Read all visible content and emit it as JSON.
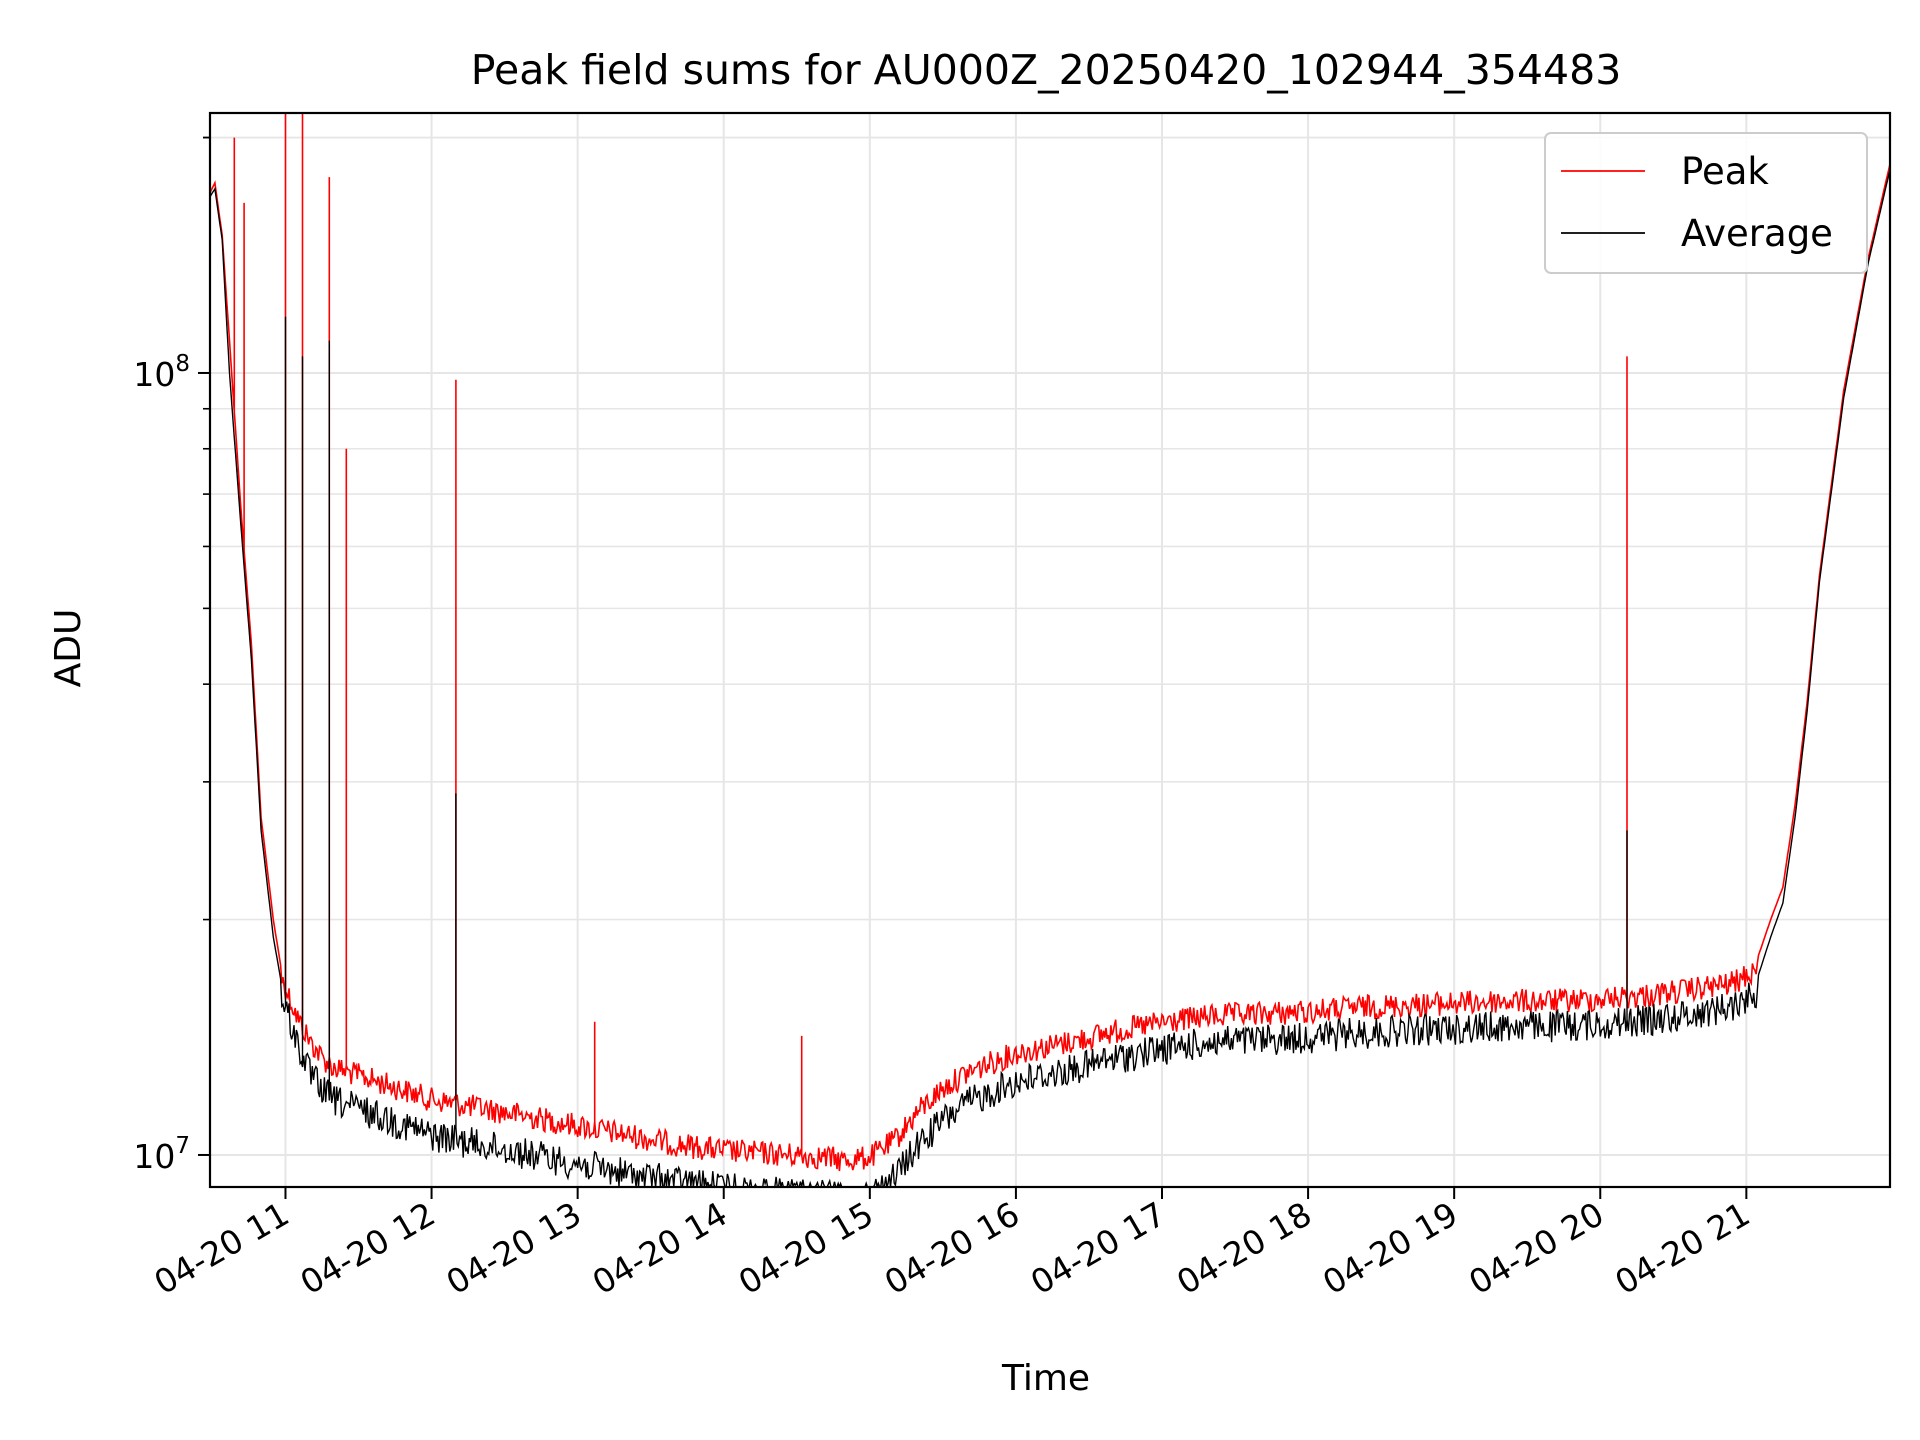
{
  "chart_data": {
    "type": "line",
    "title": "Peak field sums for AU000Z_20250420_102944_354483",
    "xlabel": "Time",
    "ylabel": "ADU",
    "y_scale": "log",
    "ylim": [
      9100000,
      215000000
    ],
    "xlim": [
      "2025-04-20 10:29",
      "2025-04-20 21:59"
    ],
    "x_ticks": [
      "04-20 11",
      "04-20 12",
      "04-20 13",
      "04-20 14",
      "04-20 15",
      "04-20 16",
      "04-20 17",
      "04-20 18",
      "04-20 19",
      "04-20 20",
      "04-20 21"
    ],
    "y_ticks": [
      "10^7",
      "10^8"
    ],
    "grid": true,
    "legend_position": "top-right",
    "series": [
      {
        "name": "Peak",
        "color": "#ff0000",
        "x": [
          "10:29",
          "10:31",
          "10:34",
          "10:37",
          "10:42",
          "10:46",
          "10:50",
          "10:55",
          "10:58",
          "11:00",
          "11:05",
          "11:10",
          "11:15",
          "11:20",
          "11:30",
          "11:40",
          "11:50",
          "12:00",
          "12:20",
          "12:40",
          "13:00",
          "13:20",
          "13:40",
          "14:00",
          "14:20",
          "14:40",
          "14:50",
          "15:00",
          "15:10",
          "15:20",
          "15:30",
          "15:40",
          "15:50",
          "16:00",
          "16:20",
          "16:40",
          "17:00",
          "17:20",
          "17:40",
          "18:00",
          "18:20",
          "18:40",
          "19:00",
          "19:20",
          "19:40",
          "20:00",
          "20:20",
          "20:40",
          "20:55",
          "21:05",
          "21:10",
          "21:15",
          "21:20",
          "21:25",
          "21:30",
          "21:40",
          "21:50",
          "21:59"
        ],
        "values": [
          170000000,
          175000000,
          150000000,
          110000000,
          65000000,
          45000000,
          27000000,
          20000000,
          17500000,
          17000000,
          15500000,
          14500000,
          13800000,
          13400000,
          13100000,
          12800000,
          12500000,
          12200000,
          11900000,
          11600000,
          11300000,
          11000000,
          10700000,
          10500000,
          10400000,
          10300000,
          10200000,
          10300000,
          10800000,
          11800000,
          12600000,
          13200000,
          13600000,
          14000000,
          14400000,
          14900000,
          15300000,
          15600000,
          15700000,
          15800000,
          16000000,
          16100000,
          16200000,
          16300000,
          16300000,
          16400000,
          16600000,
          16900000,
          17200000,
          18000000,
          20000000,
          22000000,
          28000000,
          38000000,
          55000000,
          95000000,
          140000000,
          185000000
        ],
        "spikes": [
          {
            "x": "10:39",
            "value": 200000000
          },
          {
            "x": "10:43",
            "value": 165000000
          },
          {
            "x": "11:00",
            "value": 220000000
          },
          {
            "x": "11:07",
            "value": 240000000
          },
          {
            "x": "11:18",
            "value": 178000000
          },
          {
            "x": "11:25",
            "value": 80000000
          },
          {
            "x": "12:10",
            "value": 98000000
          },
          {
            "x": "13:07",
            "value": 14800000
          },
          {
            "x": "14:32",
            "value": 14200000
          },
          {
            "x": "20:11",
            "value": 105000000
          }
        ]
      },
      {
        "name": "Average",
        "color": "#000000",
        "x": [
          "10:29",
          "10:31",
          "10:34",
          "10:37",
          "10:42",
          "10:46",
          "10:50",
          "10:55",
          "10:58",
          "11:00",
          "11:05",
          "11:10",
          "11:15",
          "11:20",
          "11:30",
          "11:40",
          "11:50",
          "12:00",
          "12:20",
          "12:40",
          "13:00",
          "13:20",
          "13:40",
          "14:00",
          "14:20",
          "14:40",
          "14:50",
          "15:00",
          "15:10",
          "15:20",
          "15:30",
          "15:40",
          "15:50",
          "16:00",
          "16:20",
          "16:40",
          "17:00",
          "17:20",
          "17:40",
          "18:00",
          "18:20",
          "18:40",
          "19:00",
          "19:20",
          "19:40",
          "20:00",
          "20:20",
          "20:40",
          "20:55",
          "21:05",
          "21:10",
          "21:15",
          "21:20",
          "21:25",
          "21:30",
          "21:40",
          "21:50",
          "21:59"
        ],
        "values": [
          168000000,
          172000000,
          148000000,
          100000000,
          62000000,
          43000000,
          26000000,
          19000000,
          16800000,
          16200000,
          14500000,
          13300000,
          12700000,
          12300000,
          12000000,
          11700000,
          11400000,
          11100000,
          10800000,
          10500000,
          10200000,
          9900000,
          9700000,
          9500000,
          9400000,
          9300000,
          9200000,
          9300000,
          9800000,
          10800000,
          11600000,
          12200000,
          12600000,
          13000000,
          13400000,
          13900000,
          14300000,
          14600000,
          14700000,
          14800000,
          15000000,
          15100000,
          15200000,
          15300000,
          15300000,
          15400000,
          15600000,
          15900000,
          16300000,
          17000000,
          19000000,
          21000000,
          27000000,
          37000000,
          54000000,
          93000000,
          138000000,
          182000000
        ],
        "spikes": [
          {
            "x": "11:00",
            "value": 118000000
          },
          {
            "x": "11:07",
            "value": 105000000
          },
          {
            "x": "11:18",
            "value": 110000000
          },
          {
            "x": "12:10",
            "value": 29000000
          },
          {
            "x": "20:11",
            "value": 26000000
          }
        ]
      }
    ]
  }
}
